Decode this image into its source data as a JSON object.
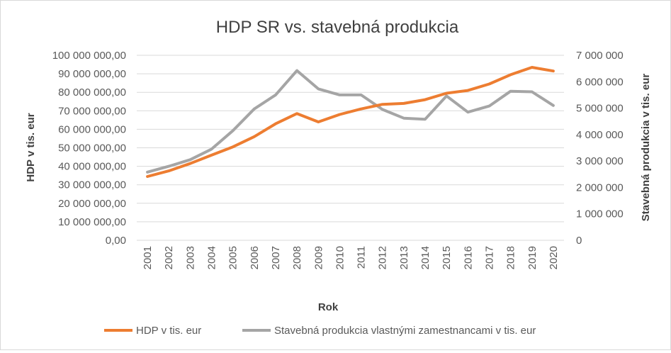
{
  "chart_data": {
    "type": "line",
    "title": "HDP SR vs. stavebná produkcia",
    "xlabel": "Rok",
    "ylabel_left": "HDP v tis. eur",
    "ylabel_right": "Stavebná produkcia v tis. eur",
    "categories": [
      "2001",
      "2002",
      "2003",
      "2004",
      "2005",
      "2006",
      "2007",
      "2008",
      "2009",
      "2010",
      "2011",
      "2012",
      "2013",
      "2014",
      "2015",
      "2016",
      "2017",
      "2018",
      "2019",
      "2020"
    ],
    "y_left": {
      "min": 0,
      "max": 100000000,
      "step": 10000000,
      "ticks": [
        "0,00",
        "10 000 000,00",
        "20 000 000,00",
        "30 000 000,00",
        "40 000 000,00",
        "50 000 000,00",
        "60 000 000,00",
        "70 000 000,00",
        "80 000 000,00",
        "90 000 000,00",
        "100 000 000,00"
      ]
    },
    "y_right": {
      "min": 0,
      "max": 7000000,
      "step": 1000000,
      "ticks": [
        "0",
        "1 000 000",
        "2 000 000",
        "3 000 000",
        "4 000 000",
        "5 000 000",
        "6 000 000",
        "7 000 000"
      ]
    },
    "grid": true,
    "legend_position": "bottom",
    "series": [
      {
        "name": "HDP v tis. eur",
        "axis": "left",
        "color": "#ED7D31",
        "values": [
          34500000,
          37500000,
          41500000,
          46000000,
          50500000,
          56000000,
          63000000,
          68500000,
          64000000,
          68000000,
          71000000,
          73500000,
          74000000,
          76000000,
          79500000,
          81000000,
          84500000,
          89500000,
          93500000,
          91500000
        ]
      },
      {
        "name": "Stavebná produkcia vlastnými zamestnancami v tis. eur",
        "axis": "right",
        "color": "#A5A5A5",
        "values": [
          2580000,
          2800000,
          3050000,
          3450000,
          4150000,
          4970000,
          5500000,
          6420000,
          5730000,
          5500000,
          5500000,
          4950000,
          4620000,
          4580000,
          5460000,
          4850000,
          5080000,
          5640000,
          5620000,
          5100000
        ]
      }
    ]
  }
}
